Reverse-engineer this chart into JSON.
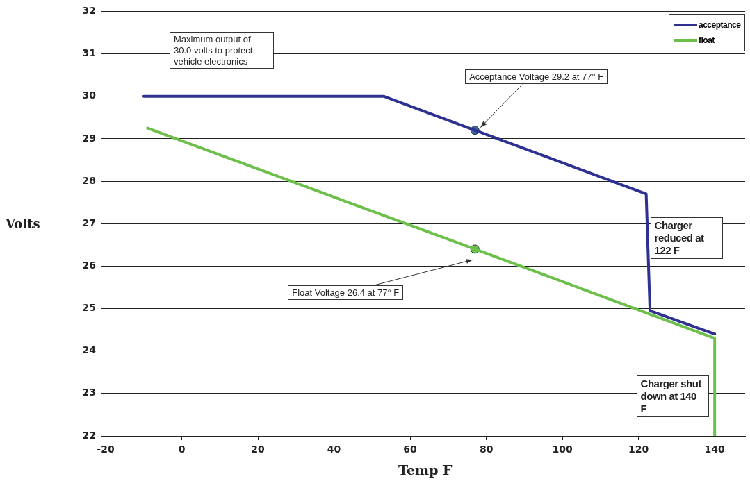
{
  "chart_data": {
    "type": "line",
    "xlabel": "Temp F",
    "ylabel": "Volts",
    "xlim": [
      -20,
      148
    ],
    "xticks": [
      -20,
      0,
      20,
      40,
      60,
      80,
      100,
      120,
      140
    ],
    "ylim": [
      22,
      32
    ],
    "yticks": [
      22,
      23,
      24,
      25,
      26,
      27,
      28,
      29,
      30,
      31,
      32
    ],
    "grid": "y",
    "legend": "top right",
    "line_style": "solid",
    "series": [
      {
        "name": "acceptance",
        "color": "#2e3192",
        "x": [
          -10,
          53,
          77,
          122,
          123,
          140
        ],
        "values": [
          30,
          30,
          29.2,
          27.7,
          24.95,
          24.4
        ]
      },
      {
        "name": "float",
        "color": "#6cc04a",
        "x": [
          -9,
          77,
          140,
          140
        ],
        "values": [
          29.25,
          26.4,
          24.3,
          22
        ]
      },
      {
        "type": "scatter",
        "marker": "circle",
        "color": "#3f5fb0",
        "x": [
          77
        ],
        "values": [
          29.2
        ]
      },
      {
        "type": "scatter",
        "marker": "circle",
        "color": "#6cc04a",
        "x": [
          77
        ],
        "values": [
          26.4
        ]
      }
    ],
    "annotations": [
      "Maximum output of 30.0 volts to protect vehicle electronics",
      {
        "text": "Acceptance Voltage 29.2 at 77° F",
        "x": 77,
        "y": 29.2
      },
      "Float Voltage 26.4 at 77° F",
      {
        "text": "Charger reduced at 122 F",
        "x": 122,
        "y": 27.7
      },
      "Charger shut down at 140 F"
    ]
  }
}
